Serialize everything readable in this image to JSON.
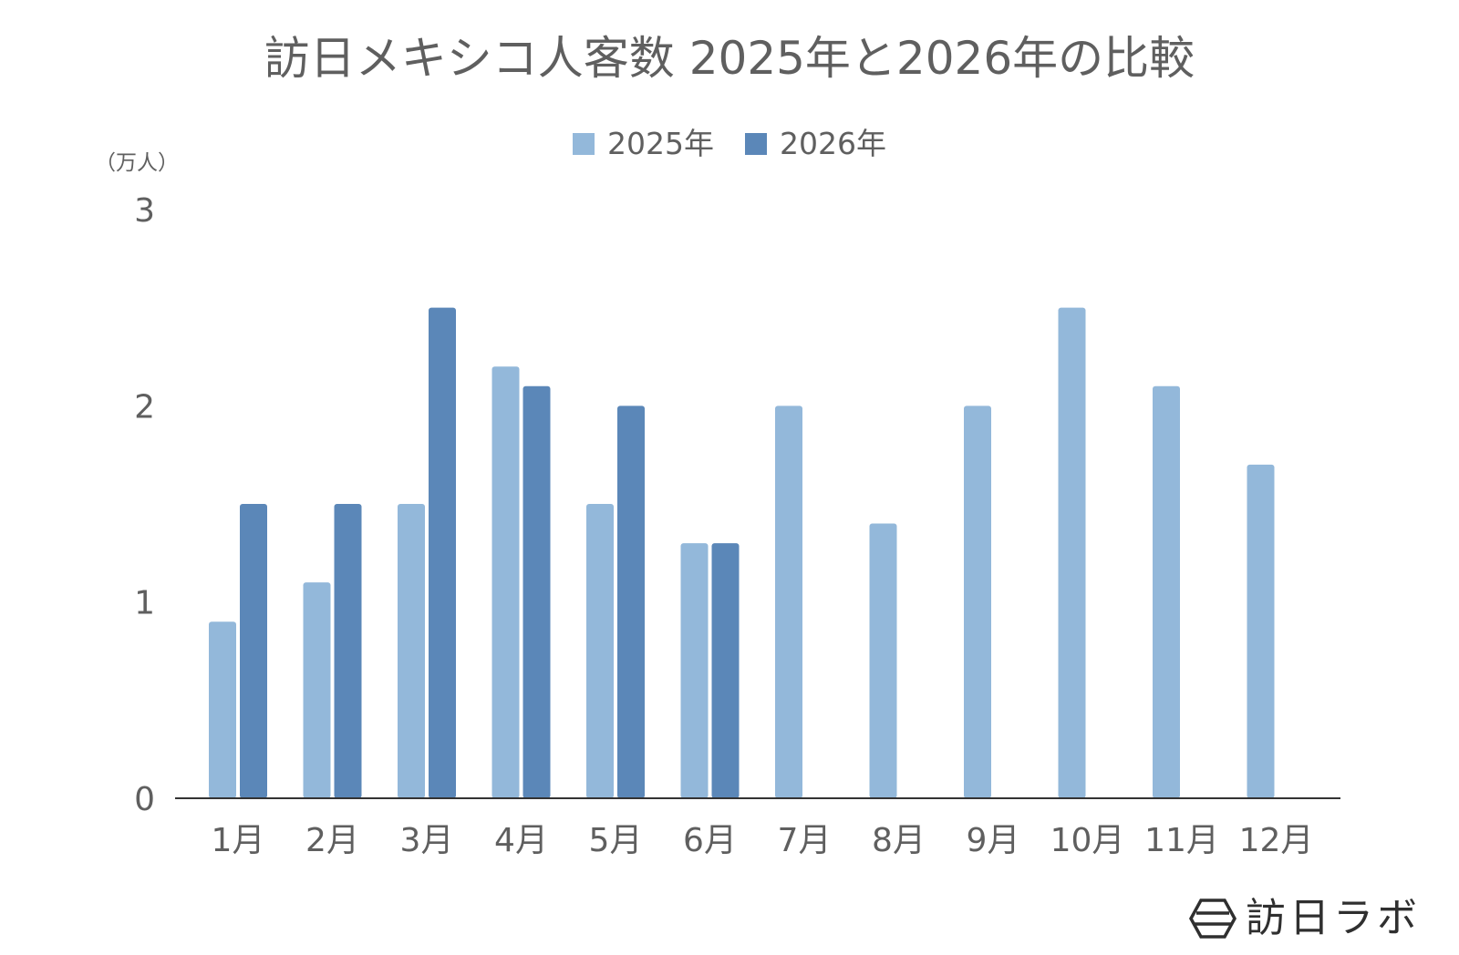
{
  "chart_data": {
    "type": "bar",
    "title": "訪日メキシコ人客数 2025年と2026年の比較",
    "ylabel": "（万人）",
    "ylim": [
      0,
      3
    ],
    "yticks": [
      "0",
      "1",
      "2",
      "3"
    ],
    "categories": [
      "1月",
      "2月",
      "3月",
      "4月",
      "5月",
      "6月",
      "7月",
      "8月",
      "9月",
      "10月",
      "11月",
      "12月"
    ],
    "series": [
      {
        "name": "2025年",
        "color": "#93b8da",
        "values": [
          0.9,
          1.1,
          1.5,
          2.2,
          1.5,
          1.3,
          2.0,
          1.4,
          2.0,
          2.5,
          2.1,
          1.7
        ]
      },
      {
        "name": "2026年",
        "color": "#5b87b8",
        "values": [
          1.5,
          1.5,
          2.5,
          2.1,
          2.0,
          1.3,
          null,
          null,
          null,
          null,
          null,
          null
        ]
      }
    ],
    "grid": false,
    "legend_position": "top-center"
  },
  "brand": {
    "text": "訪日ラボ",
    "icon": "hexagon-logo-icon"
  }
}
